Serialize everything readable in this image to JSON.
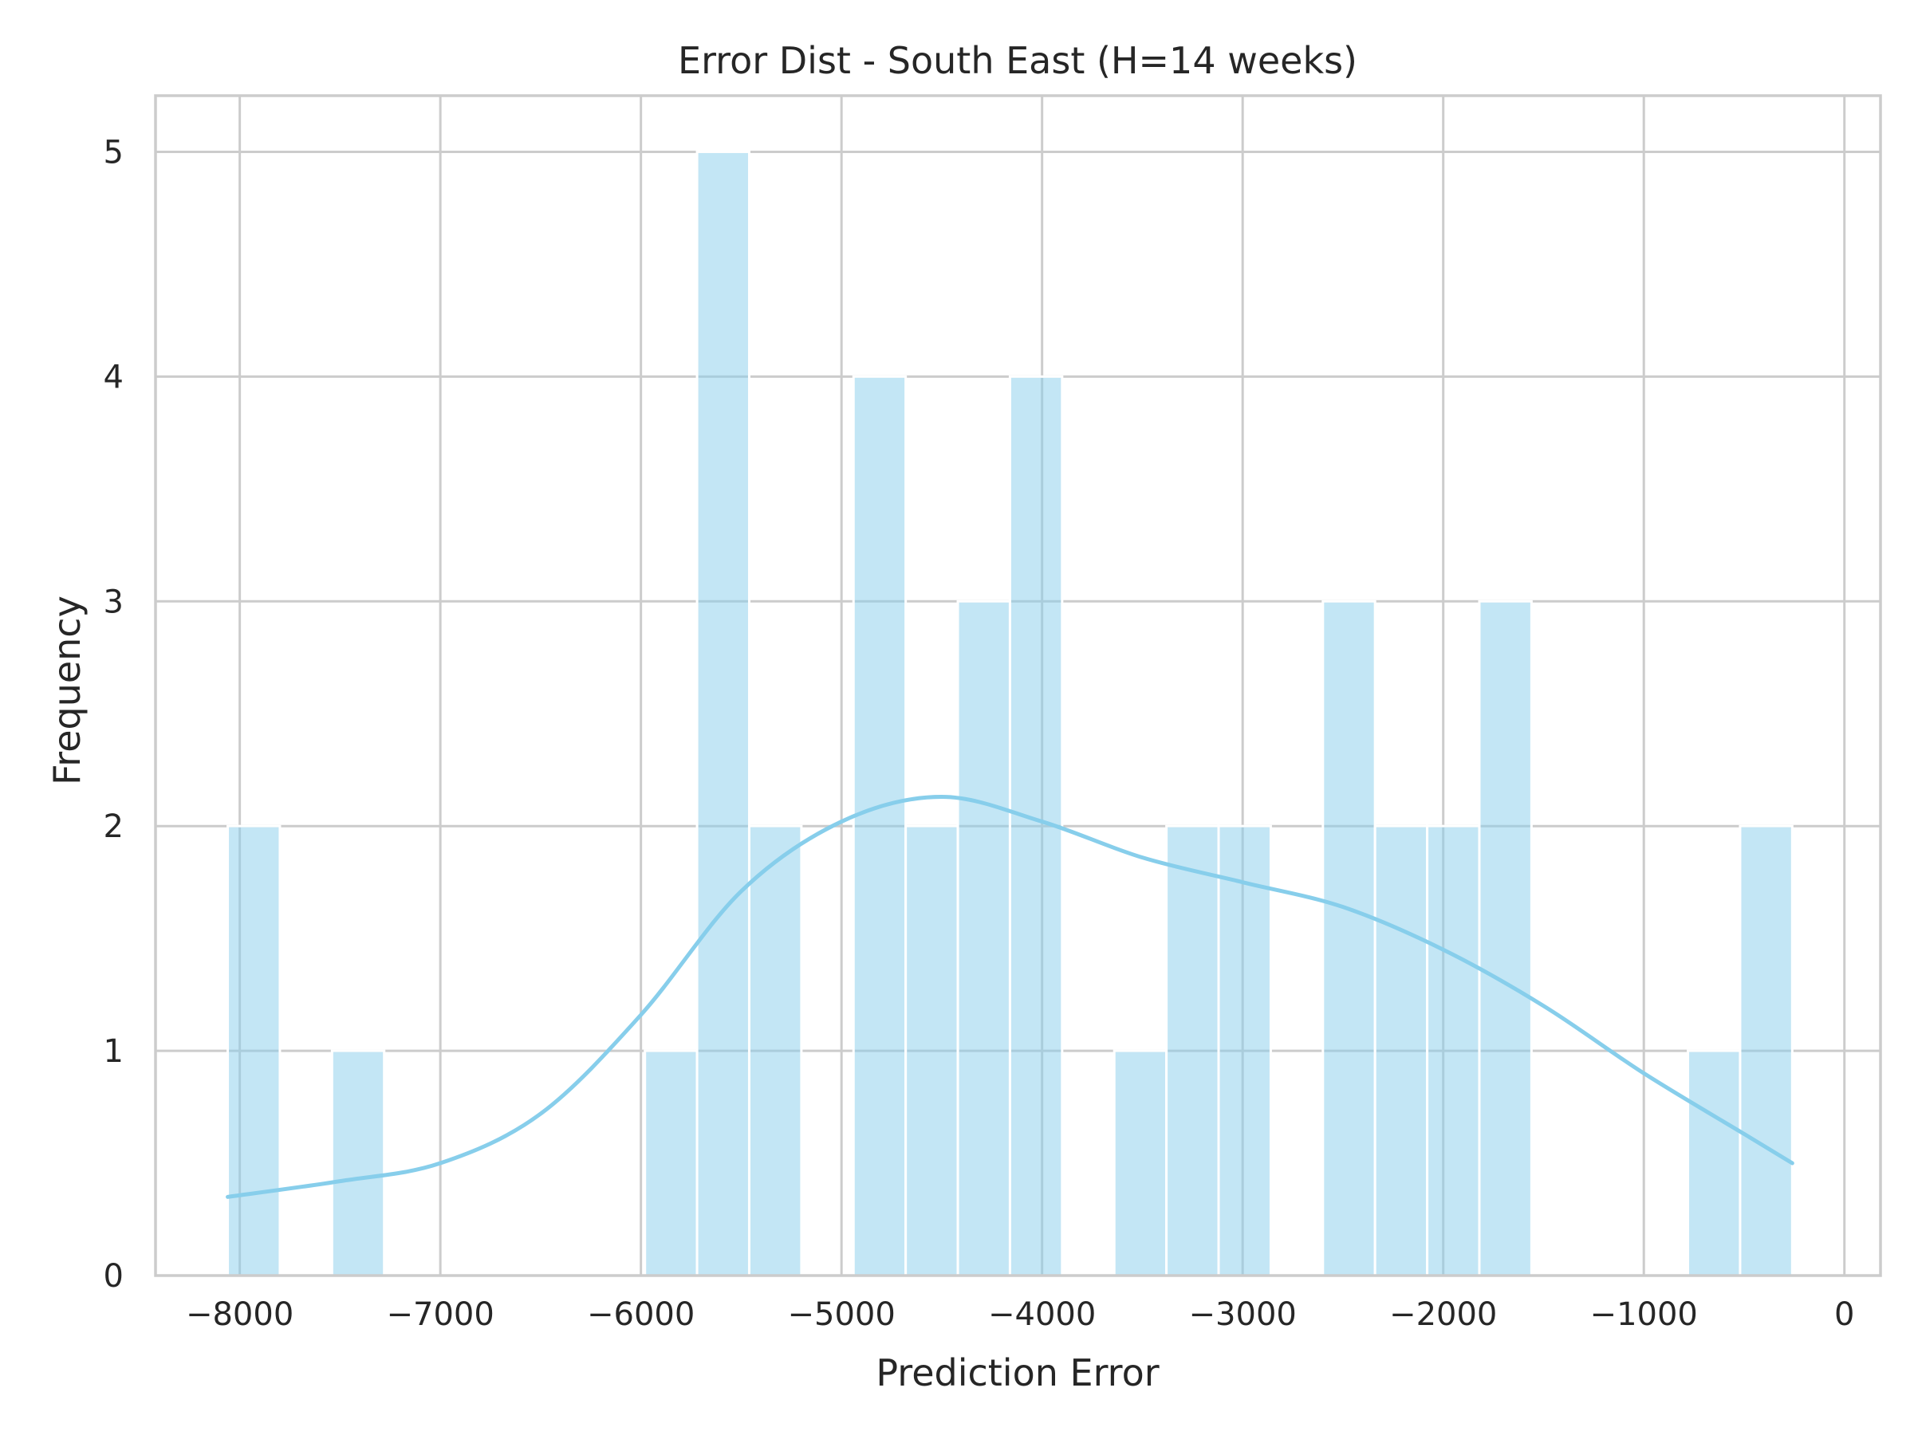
{
  "chart_data": {
    "type": "histogram",
    "title": "Error Dist - South East (H=14 weeks)",
    "xlabel": "Prediction Error",
    "ylabel": "Frequency",
    "xlim": [
      -8420,
      180
    ],
    "ylim": [
      0,
      5.25
    ],
    "x_ticks": [
      -8000,
      -7000,
      -6000,
      -5000,
      -4000,
      -3000,
      -2000,
      -1000,
      0
    ],
    "x_tick_labels": [
      "−8000",
      "−7000",
      "−6000",
      "−5000",
      "−4000",
      "−3000",
      "−2000",
      "−1000",
      "0"
    ],
    "y_ticks": [
      0,
      1,
      2,
      3,
      4,
      5
    ],
    "y_tick_labels": [
      "0",
      "1",
      "2",
      "3",
      "4",
      "5"
    ],
    "grid": true,
    "bar_color": "#87CEEB",
    "bar_opacity": 0.5,
    "kde_color": "#87CEEB",
    "bins": [
      {
        "x0": -8060,
        "x1": -7800,
        "count": 2
      },
      {
        "x0": -7800,
        "x1": -7540,
        "count": 0
      },
      {
        "x0": -7540,
        "x1": -7280,
        "count": 1
      },
      {
        "x0": -7280,
        "x1": -7020,
        "count": 0
      },
      {
        "x0": -7020,
        "x1": -6760,
        "count": 0
      },
      {
        "x0": -6760,
        "x1": -6500,
        "count": 0
      },
      {
        "x0": -6500,
        "x1": -6240,
        "count": 0
      },
      {
        "x0": -6240,
        "x1": -5980,
        "count": 0
      },
      {
        "x0": -5980,
        "x1": -5720,
        "count": 1
      },
      {
        "x0": -5720,
        "x1": -5460,
        "count": 5
      },
      {
        "x0": -5460,
        "x1": -5200,
        "count": 2
      },
      {
        "x0": -5200,
        "x1": -4940,
        "count": 0
      },
      {
        "x0": -4940,
        "x1": -4680,
        "count": 4
      },
      {
        "x0": -4680,
        "x1": -4420,
        "count": 2
      },
      {
        "x0": -4420,
        "x1": -4160,
        "count": 3
      },
      {
        "x0": -4160,
        "x1": -3900,
        "count": 4
      },
      {
        "x0": -3900,
        "x1": -3640,
        "count": 0
      },
      {
        "x0": -3640,
        "x1": -3380,
        "count": 1
      },
      {
        "x0": -3380,
        "x1": -3120,
        "count": 2
      },
      {
        "x0": -3120,
        "x1": -2860,
        "count": 2
      },
      {
        "x0": -2860,
        "x1": -2600,
        "count": 0
      },
      {
        "x0": -2600,
        "x1": -2340,
        "count": 3
      },
      {
        "x0": -2340,
        "x1": -2080,
        "count": 2
      },
      {
        "x0": -2080,
        "x1": -1820,
        "count": 2
      },
      {
        "x0": -1820,
        "x1": -1560,
        "count": 3
      },
      {
        "x0": -1560,
        "x1": -1300,
        "count": 0
      },
      {
        "x0": -1300,
        "x1": -1040,
        "count": 0
      },
      {
        "x0": -1040,
        "x1": -780,
        "count": 0
      },
      {
        "x0": -780,
        "x1": -520,
        "count": 1
      },
      {
        "x0": -520,
        "x1": -260,
        "count": 2
      }
    ],
    "kde": {
      "x": [
        -8060,
        -7500,
        -7000,
        -6500,
        -6000,
        -5500,
        -5000,
        -4500,
        -4000,
        -3500,
        -3000,
        -2500,
        -2000,
        -1500,
        -1000,
        -500,
        -260
      ],
      "y": [
        0.35,
        0.42,
        0.5,
        0.72,
        1.16,
        1.71,
        2.02,
        2.13,
        2.02,
        1.86,
        1.75,
        1.64,
        1.45,
        1.2,
        0.9,
        0.63,
        0.5
      ]
    }
  }
}
